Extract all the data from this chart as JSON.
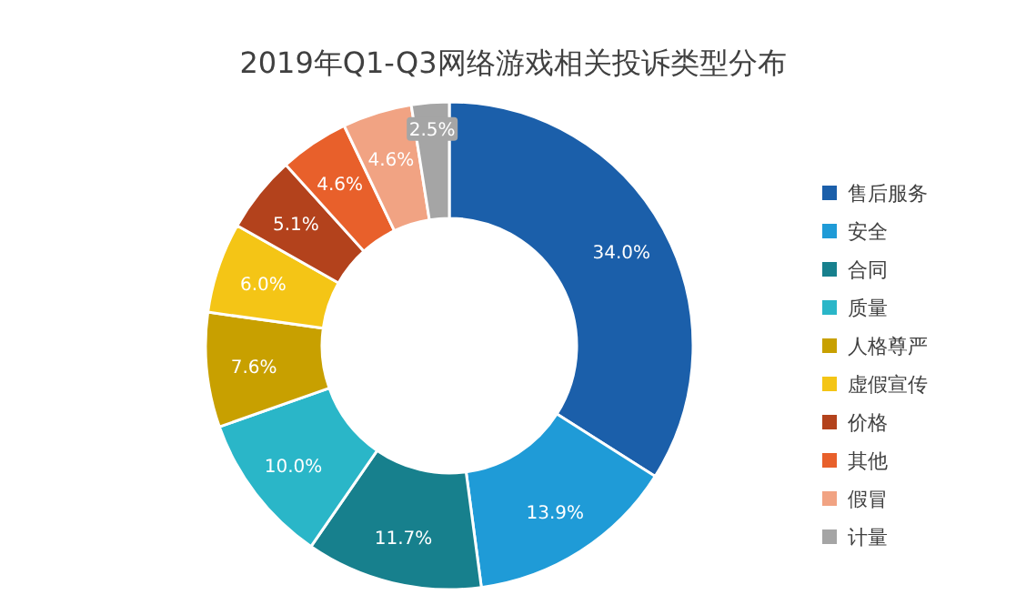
{
  "chart_data": {
    "type": "donut",
    "title": "2019年Q1-Q3网络游戏相关投诉类型分布",
    "categories": [
      "售后服务",
      "安全",
      "合同",
      "质量",
      "人格尊严",
      "虚假宣传",
      "价格",
      "其他",
      "假冒",
      "计量"
    ],
    "values": [
      34.0,
      13.9,
      11.7,
      10.0,
      7.6,
      6.0,
      5.1,
      4.6,
      4.6,
      2.5
    ],
    "value_labels": [
      "34.0%",
      "13.9%",
      "11.7%",
      "10.0%",
      "7.6%",
      "6.0%",
      "5.1%",
      "4.6%",
      "4.6%",
      "2.5%"
    ],
    "colors": [
      "#1b5faa",
      "#1f9bd7",
      "#17808d",
      "#2ab6c8",
      "#c8a000",
      "#f4c516",
      "#b3421c",
      "#e8602b",
      "#f1a383",
      "#a5a5a5"
    ],
    "legend": "right"
  }
}
